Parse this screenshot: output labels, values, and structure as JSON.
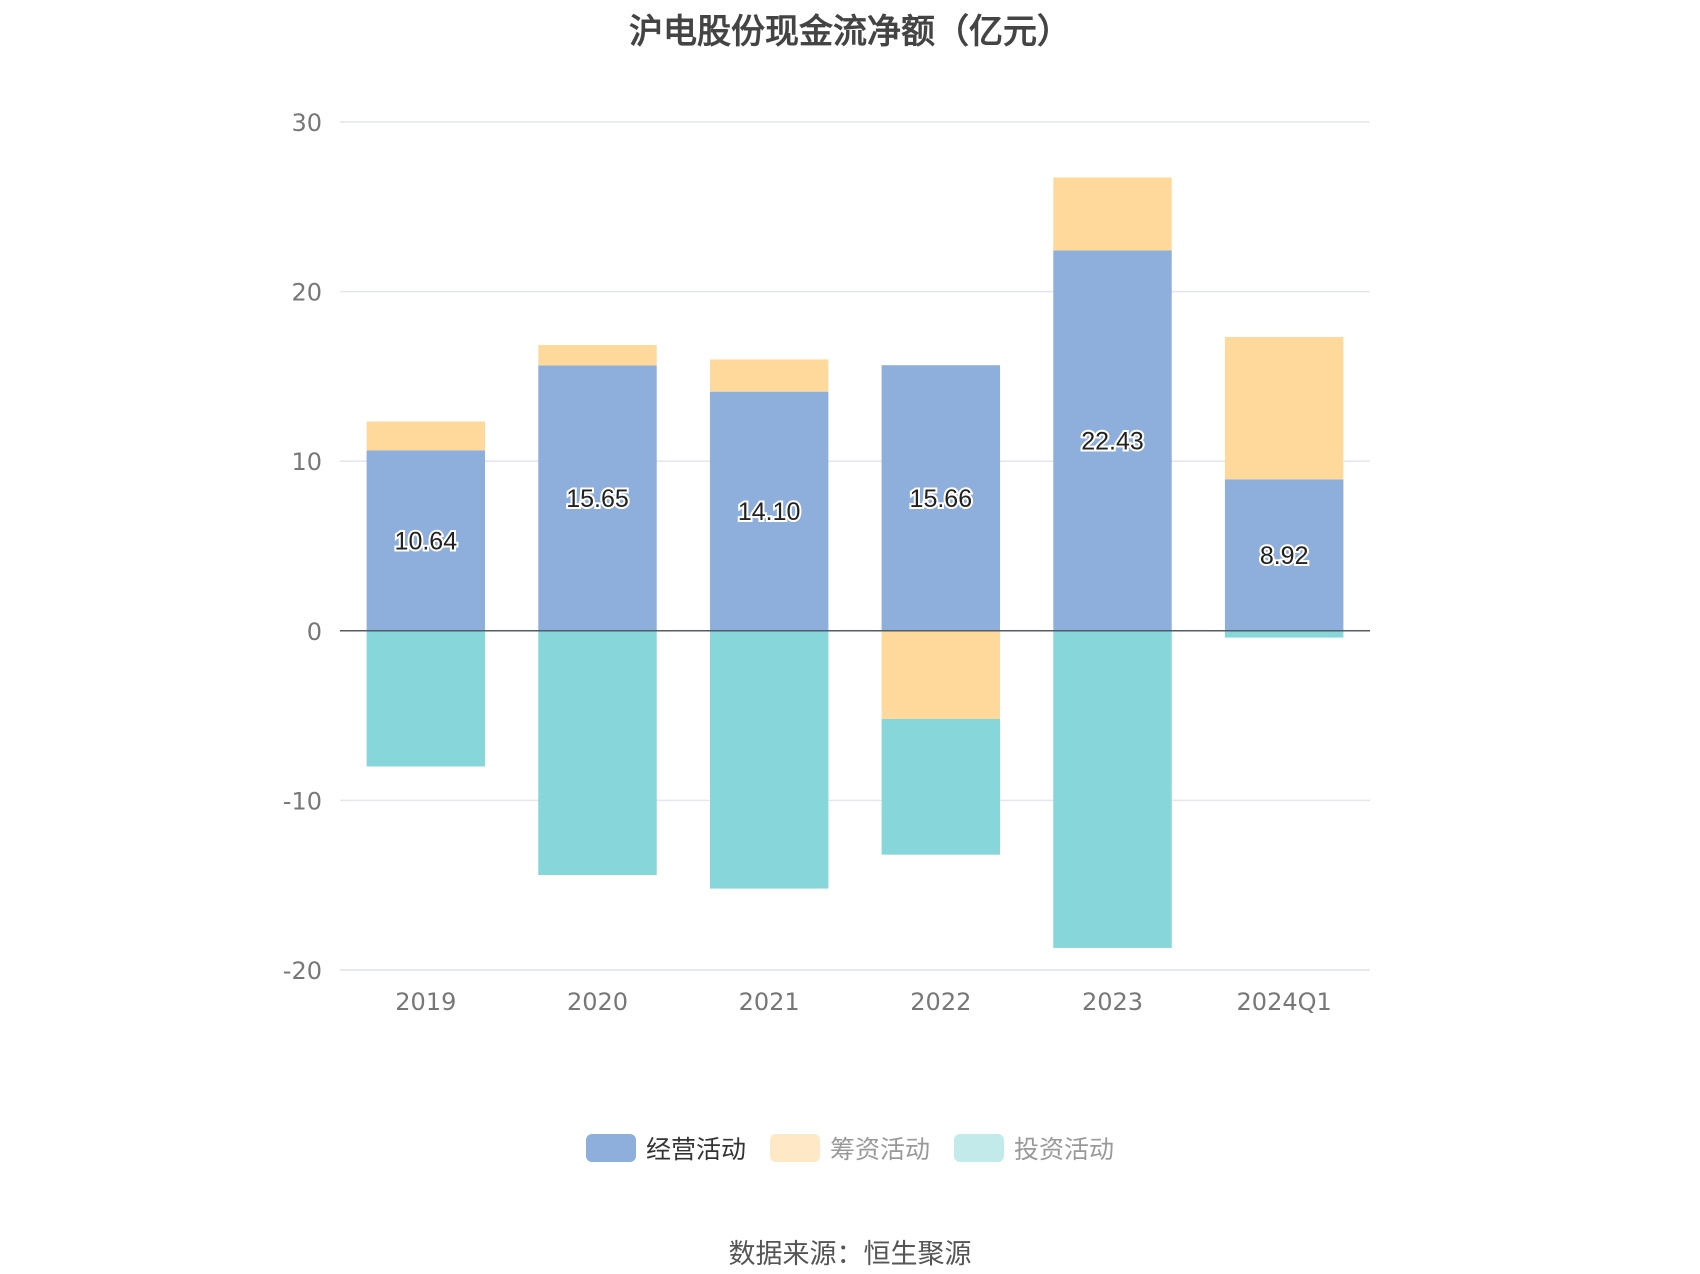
{
  "chart_data": {
    "type": "bar",
    "stacked": true,
    "title": "沪电股份现金流净额（亿元）",
    "categories": [
      "2019",
      "2020",
      "2021",
      "2022",
      "2023",
      "2024Q1"
    ],
    "ylim": [
      -20,
      30
    ],
    "yticks": [
      30,
      20,
      10,
      0,
      -10,
      -20
    ],
    "grid": true,
    "legend_position": "bottom",
    "series": [
      {
        "name": "经营活动",
        "color": "#8eaedb",
        "values": [
          10.64,
          15.65,
          14.1,
          15.66,
          22.43,
          8.92
        ],
        "labels": [
          "10.64",
          "15.65",
          "14.10",
          "15.66",
          "22.43",
          "8.92"
        ]
      },
      {
        "name": "筹资活动",
        "color": "#ffd99b",
        "values": [
          1.7,
          1.2,
          1.9,
          -5.2,
          4.3,
          8.4
        ]
      },
      {
        "name": "投资活动",
        "color": "#87d6d9",
        "values": [
          -8.0,
          -14.4,
          -15.2,
          -8.0,
          -18.7,
          -0.4
        ]
      }
    ]
  },
  "legend": {
    "items": [
      {
        "name": "经营活动",
        "color": "#8eaedb",
        "text_color": "#333333"
      },
      {
        "name": "筹资活动",
        "color": "#ffe8c5",
        "text_color": "#999999"
      },
      {
        "name": "投资活动",
        "color": "#c2eaeb",
        "text_color": "#999999"
      }
    ]
  },
  "source": "数据来源：恒生聚源"
}
